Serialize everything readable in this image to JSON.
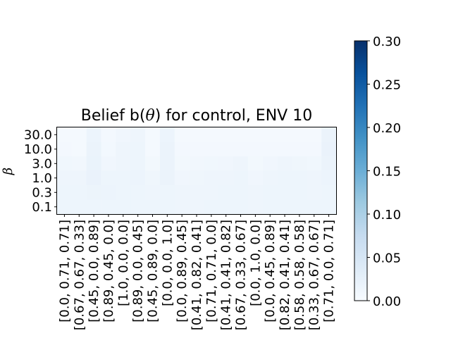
{
  "chart_data": {
    "type": "heatmap",
    "title_prefix": "Belief b(",
    "title_symbol": "θ",
    "title_suffix": ") for control, ENV 10",
    "ylabel": "β",
    "x_categories": [
      "[0.0, 0.71, 0.71]",
      "[0.67, 0.67, 0.33]",
      "[0.45, 0.0, 0.89]",
      "[0.89, 0.45, 0.0]",
      "[1.0, 0.0, 0.0]",
      "[0.89, 0.0, 0.45]",
      "[0.45, 0.89, 0.0]",
      "[0.0, 0.0, 1.0]",
      "[0.0, 0.89, 0.45]",
      "[0.41, 0.82, 0.41]",
      "[0.71, 0.71, 0.0]",
      "[0.41, 0.41, 0.82]",
      "[0.67, 0.33, 0.67]",
      "[0.0, 1.0, 0.0]",
      "[0.0, 0.45, 0.89]",
      "[0.82, 0.41, 0.41]",
      "[0.58, 0.58, 0.58]",
      "[0.33, 0.67, 0.67]",
      "[0.71, 0.0, 0.71]"
    ],
    "y_categories": [
      "30.0",
      "10.0",
      "3.0",
      "1.0",
      "0.3",
      "0.1"
    ],
    "values": [
      [
        0.005,
        0.004,
        0.016,
        0.006,
        0.011,
        0.013,
        0.004,
        0.016,
        0.005,
        0.005,
        0.005,
        0.005,
        0.005,
        0.005,
        0.005,
        0.005,
        0.005,
        0.005,
        0.018
      ],
      [
        0.006,
        0.005,
        0.018,
        0.007,
        0.013,
        0.015,
        0.005,
        0.018,
        0.006,
        0.006,
        0.006,
        0.006,
        0.006,
        0.006,
        0.006,
        0.006,
        0.006,
        0.006,
        0.02
      ],
      [
        0.01,
        0.009,
        0.019,
        0.011,
        0.014,
        0.015,
        0.008,
        0.018,
        0.008,
        0.009,
        0.01,
        0.011,
        0.013,
        0.008,
        0.011,
        0.013,
        0.012,
        0.01,
        0.018
      ],
      [
        0.014,
        0.013,
        0.02,
        0.015,
        0.015,
        0.016,
        0.012,
        0.018,
        0.011,
        0.012,
        0.013,
        0.014,
        0.015,
        0.011,
        0.014,
        0.015,
        0.015,
        0.013,
        0.016
      ],
      [
        0.015,
        0.015,
        0.017,
        0.016,
        0.015,
        0.015,
        0.014,
        0.015,
        0.013,
        0.014,
        0.014,
        0.015,
        0.015,
        0.013,
        0.015,
        0.015,
        0.015,
        0.014,
        0.015
      ],
      [
        0.015,
        0.015,
        0.015,
        0.015,
        0.015,
        0.015,
        0.015,
        0.015,
        0.014,
        0.014,
        0.015,
        0.015,
        0.015,
        0.014,
        0.015,
        0.015,
        0.015,
        0.015,
        0.015
      ]
    ],
    "colorbar": {
      "colormap": "Blues",
      "range": [
        0.0,
        0.3
      ],
      "ticks": [
        "0.00",
        "0.05",
        "0.10",
        "0.15",
        "0.20",
        "0.25",
        "0.30"
      ]
    },
    "colors": {
      "low": "#f7fbff",
      "high": "#08306b"
    }
  }
}
